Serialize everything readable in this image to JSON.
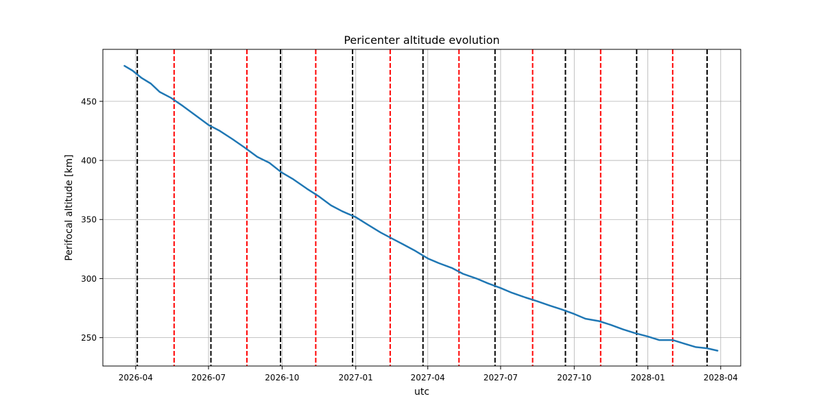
{
  "chart_data": {
    "type": "line",
    "title": "Pericenter altitude evolution",
    "xlabel": "utc",
    "ylabel": "Perifocal altitude [km]",
    "x_type": "date",
    "xlim": [
      "2026-02-19",
      "2028-04-26"
    ],
    "ylim": [
      226,
      494
    ],
    "grid": true,
    "x_ticks": [
      {
        "date": "2026-04-01",
        "label": "2026-04"
      },
      {
        "date": "2026-07-01",
        "label": "2026-07"
      },
      {
        "date": "2026-10-01",
        "label": "2026-10"
      },
      {
        "date": "2027-01-01",
        "label": "2027-01"
      },
      {
        "date": "2027-04-01",
        "label": "2027-04"
      },
      {
        "date": "2027-07-01",
        "label": "2027-07"
      },
      {
        "date": "2027-10-01",
        "label": "2027-10"
      },
      {
        "date": "2028-01-01",
        "label": "2028-01"
      },
      {
        "date": "2028-04-01",
        "label": "2028-04"
      }
    ],
    "y_ticks": [
      250,
      300,
      350,
      400,
      450
    ],
    "series": [
      {
        "color": "#1f77b4",
        "points": [
          [
            "2026-03-18",
            480
          ],
          [
            "2026-03-28",
            476
          ],
          [
            "2026-04-08",
            470
          ],
          [
            "2026-04-20",
            465
          ],
          [
            "2026-05-01",
            458
          ],
          [
            "2026-05-15",
            453
          ],
          [
            "2026-05-30",
            446
          ],
          [
            "2026-06-15",
            438
          ],
          [
            "2026-07-01",
            430
          ],
          [
            "2026-07-15",
            425
          ],
          [
            "2026-07-31",
            418
          ],
          [
            "2026-08-15",
            411
          ],
          [
            "2026-08-31",
            403
          ],
          [
            "2026-09-15",
            398
          ],
          [
            "2026-09-30",
            390
          ],
          [
            "2026-10-15",
            384
          ],
          [
            "2026-11-01",
            376
          ],
          [
            "2026-11-15",
            370
          ],
          [
            "2026-12-01",
            362
          ],
          [
            "2026-12-15",
            357
          ],
          [
            "2027-01-01",
            352
          ],
          [
            "2027-01-15",
            346
          ],
          [
            "2027-02-01",
            339
          ],
          [
            "2027-02-15",
            334
          ],
          [
            "2027-03-01",
            329
          ],
          [
            "2027-03-15",
            324
          ],
          [
            "2027-04-01",
            317
          ],
          [
            "2027-04-15",
            313
          ],
          [
            "2027-05-01",
            309
          ],
          [
            "2027-05-15",
            304
          ],
          [
            "2027-06-01",
            300
          ],
          [
            "2027-06-15",
            296
          ],
          [
            "2027-07-01",
            292
          ],
          [
            "2027-07-15",
            288
          ],
          [
            "2027-08-01",
            284
          ],
          [
            "2027-08-15",
            281
          ],
          [
            "2027-09-01",
            277
          ],
          [
            "2027-09-15",
            274
          ],
          [
            "2027-10-01",
            270
          ],
          [
            "2027-10-15",
            266
          ],
          [
            "2027-11-01",
            264
          ],
          [
            "2027-11-15",
            261
          ],
          [
            "2027-12-01",
            257
          ],
          [
            "2027-12-15",
            254
          ],
          [
            "2028-01-01",
            251
          ],
          [
            "2028-01-15",
            248
          ],
          [
            "2028-02-01",
            248
          ],
          [
            "2028-02-15",
            245
          ],
          [
            "2028-03-01",
            242
          ],
          [
            "2028-03-15",
            241
          ],
          [
            "2028-03-28",
            239
          ]
        ]
      }
    ],
    "vlines": [
      {
        "date": "2026-04-03",
        "color": "#000000",
        "style": "dashed"
      },
      {
        "date": "2026-05-19",
        "color": "#ff0000",
        "style": "dashed"
      },
      {
        "date": "2026-07-04",
        "color": "#000000",
        "style": "dashed"
      },
      {
        "date": "2026-08-18",
        "color": "#ff0000",
        "style": "dashed"
      },
      {
        "date": "2026-09-29",
        "color": "#000000",
        "style": "dashed"
      },
      {
        "date": "2026-11-12",
        "color": "#ff0000",
        "style": "dashed"
      },
      {
        "date": "2026-12-28",
        "color": "#000000",
        "style": "dashed"
      },
      {
        "date": "2027-02-13",
        "color": "#ff0000",
        "style": "dashed"
      },
      {
        "date": "2027-03-26",
        "color": "#000000",
        "style": "dashed"
      },
      {
        "date": "2027-05-10",
        "color": "#ff0000",
        "style": "dashed"
      },
      {
        "date": "2027-06-24",
        "color": "#000000",
        "style": "dashed"
      },
      {
        "date": "2027-08-10",
        "color": "#ff0000",
        "style": "dashed"
      },
      {
        "date": "2027-09-20",
        "color": "#000000",
        "style": "dashed"
      },
      {
        "date": "2027-11-03",
        "color": "#ff0000",
        "style": "dashed"
      },
      {
        "date": "2027-12-18",
        "color": "#000000",
        "style": "dashed"
      },
      {
        "date": "2028-02-01",
        "color": "#ff0000",
        "style": "dashed"
      },
      {
        "date": "2028-03-15",
        "color": "#000000",
        "style": "dashed"
      }
    ]
  }
}
